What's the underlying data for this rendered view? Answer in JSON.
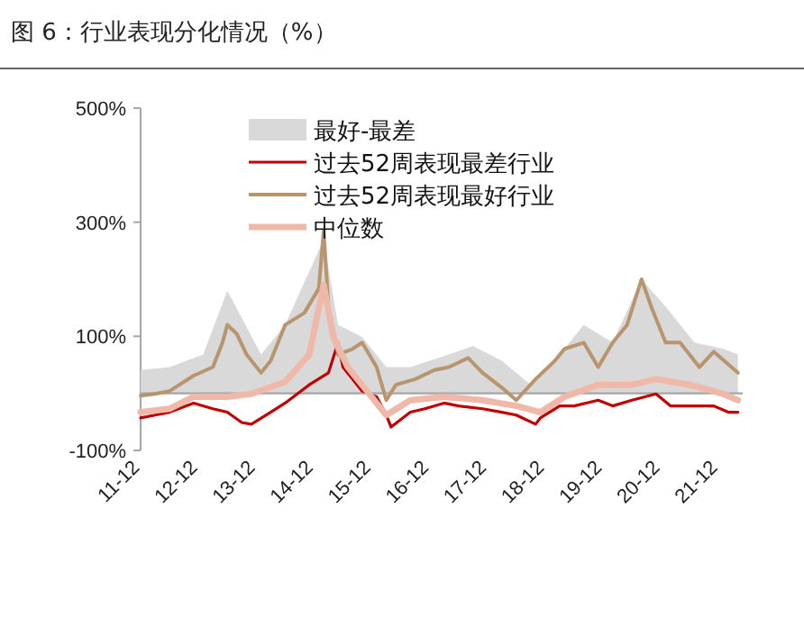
{
  "chart_data": {
    "type": "line",
    "title": "图 6：行业表现分化情况（%）",
    "ylim": [
      -100,
      500
    ],
    "yticks": [
      {
        "value": -100,
        "label": "-100%"
      },
      {
        "value": 100,
        "label": "100%"
      },
      {
        "value": 300,
        "label": "300%"
      },
      {
        "value": 500,
        "label": "500%"
      }
    ],
    "xlim": [
      "2011-12",
      "2022-05"
    ],
    "xticks": [
      {
        "value": "2011-12",
        "label": "11-12"
      },
      {
        "value": "2012-12",
        "label": "12-12"
      },
      {
        "value": "2013-12",
        "label": "13-12"
      },
      {
        "value": "2014-12",
        "label": "14-12"
      },
      {
        "value": "2015-12",
        "label": "15-12"
      },
      {
        "value": "2016-12",
        "label": "16-12"
      },
      {
        "value": "2017-12",
        "label": "17-12"
      },
      {
        "value": "2018-12",
        "label": "18-12"
      },
      {
        "value": "2019-12",
        "label": "19-12"
      },
      {
        "value": "2020-12",
        "label": "20-12"
      },
      {
        "value": "2021-12",
        "label": "21-12"
      }
    ],
    "ref_lines": [
      {
        "axis": "y",
        "value": 0,
        "color": "#a6a6a6"
      }
    ],
    "legend": "top",
    "grid": false,
    "series": [
      {
        "name": "最好-最差",
        "type": "area",
        "color": "#d9d9d9",
        "x": [
          "2011-12",
          "2012-06",
          "2013-01",
          "2013-06",
          "2014-01",
          "2014-06",
          "2015-02",
          "2015-05",
          "2015-10",
          "2016-03",
          "2016-08",
          "2017-04",
          "2017-09",
          "2018-03",
          "2018-09",
          "2019-03",
          "2019-08",
          "2020-02",
          "2020-08",
          "2021-01",
          "2021-07",
          "2022-01",
          "2022-04"
        ],
        "values": [
          41,
          46,
          68,
          180,
          68,
          120,
          270,
          120,
          99,
          46,
          46,
          68,
          83,
          57,
          15,
          68,
          120,
          89,
          200,
          152,
          89,
          78,
          68
        ]
      },
      {
        "name": "过去52周表现最差行业",
        "color": "#c00000",
        "x": [
          "2011-12",
          "2012-03",
          "2012-06",
          "2012-11",
          "2013-03",
          "2013-06",
          "2013-09",
          "2013-11",
          "2014-03",
          "2014-06",
          "2014-11",
          "2015-03",
          "2015-05",
          "2015-06",
          "2015-08",
          "2015-10",
          "2016-01",
          "2016-03",
          "2016-04",
          "2016-08",
          "2016-11",
          "2017-03",
          "2017-06",
          "2017-11",
          "2018-03",
          "2018-06",
          "2018-10",
          "2018-11",
          "2019-03",
          "2019-06",
          "2019-11",
          "2020-02",
          "2020-06",
          "2020-11",
          "2021-02",
          "2021-06",
          "2021-11",
          "2022-02",
          "2022-04"
        ],
        "values": [
          -43,
          -38,
          -33,
          -17,
          -27,
          -33,
          -51,
          -54,
          -33,
          -17,
          15,
          36,
          89,
          46,
          25,
          4,
          -6,
          -38,
          -59,
          -33,
          -27,
          -17,
          -22,
          -27,
          -33,
          -38,
          -54,
          -43,
          -22,
          -22,
          -12,
          -22,
          -12,
          -1,
          -22,
          -22,
          -22,
          -33,
          -33
        ]
      },
      {
        "name": "过去52周表现最好行业",
        "color": "#b8956e",
        "x": [
          "2011-12",
          "2012-03",
          "2012-06",
          "2012-11",
          "2013-03",
          "2013-05",
          "2013-06",
          "2013-08",
          "2013-10",
          "2014-01",
          "2014-03",
          "2014-06",
          "2014-10",
          "2015-01",
          "2015-02",
          "2015-03",
          "2015-05",
          "2015-08",
          "2015-10",
          "2016-01",
          "2016-03",
          "2016-05",
          "2016-09",
          "2017-01",
          "2017-04",
          "2017-08",
          "2017-11",
          "2018-03",
          "2018-06",
          "2018-10",
          "2019-02",
          "2019-04",
          "2019-08",
          "2019-11",
          "2020-02",
          "2020-05",
          "2020-08",
          "2020-10",
          "2021-01",
          "2021-04",
          "2021-08",
          "2021-11",
          "2022-04"
        ],
        "values": [
          -4,
          -1,
          4,
          31,
          46,
          89,
          120,
          104,
          68,
          36,
          57,
          120,
          141,
          184,
          285,
          152,
          68,
          78,
          89,
          46,
          -12,
          15,
          25,
          41,
          46,
          62,
          36,
          10,
          -12,
          25,
          57,
          78,
          89,
          46,
          89,
          120,
          200,
          152,
          89,
          89,
          46,
          73,
          36
        ]
      },
      {
        "name": "中位数",
        "color": "#f0b8a8",
        "x": [
          "2011-12",
          "2012-06",
          "2012-11",
          "2013-06",
          "2013-11",
          "2014-06",
          "2014-11",
          "2015-02",
          "2015-04",
          "2015-07",
          "2015-11",
          "2016-03",
          "2016-08",
          "2017-03",
          "2017-11",
          "2018-06",
          "2018-11",
          "2019-04",
          "2019-11",
          "2020-06",
          "2020-11",
          "2021-06",
          "2022-01",
          "2022-04"
        ],
        "values": [
          -33,
          -27,
          -6,
          -6,
          -1,
          20,
          68,
          190,
          99,
          46,
          4,
          -38,
          -12,
          -6,
          -12,
          -22,
          -33,
          -6,
          15,
          15,
          25,
          15,
          -1,
          -12
        ]
      }
    ]
  }
}
